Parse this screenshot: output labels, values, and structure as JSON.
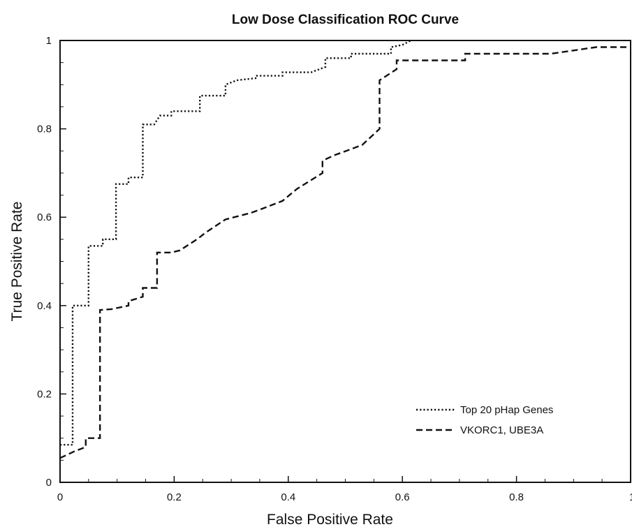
{
  "chart_data": {
    "type": "line",
    "title": "Low Dose Classification ROC Curve",
    "xlabel": "False Positive Rate",
    "ylabel": "True Positive Rate",
    "xlim": [
      0,
      1
    ],
    "ylim": [
      0,
      1
    ],
    "x_ticks": [
      "0",
      "0.2",
      "0.4",
      "0.6",
      "0.8",
      "1"
    ],
    "y_ticks": [
      "0",
      "0.2",
      "0.4",
      "0.6",
      "0.8",
      "1"
    ],
    "grid": false,
    "legend_position": "bottom-right",
    "series": [
      {
        "name": "Top 20 pHap Genes",
        "line_style": "dotted",
        "color": "#111111",
        "points": [
          [
            0.0,
            0.085
          ],
          [
            0.022,
            0.085
          ],
          [
            0.022,
            0.4
          ],
          [
            0.05,
            0.4
          ],
          [
            0.05,
            0.535
          ],
          [
            0.075,
            0.535
          ],
          [
            0.075,
            0.55
          ],
          [
            0.098,
            0.55
          ],
          [
            0.098,
            0.675
          ],
          [
            0.12,
            0.675
          ],
          [
            0.12,
            0.69
          ],
          [
            0.145,
            0.69
          ],
          [
            0.145,
            0.81
          ],
          [
            0.165,
            0.81
          ],
          [
            0.175,
            0.83
          ],
          [
            0.195,
            0.83
          ],
          [
            0.195,
            0.84
          ],
          [
            0.245,
            0.84
          ],
          [
            0.245,
            0.875
          ],
          [
            0.29,
            0.875
          ],
          [
            0.29,
            0.9
          ],
          [
            0.31,
            0.91
          ],
          [
            0.345,
            0.915
          ],
          [
            0.345,
            0.92
          ],
          [
            0.39,
            0.92
          ],
          [
            0.39,
            0.928
          ],
          [
            0.44,
            0.928
          ],
          [
            0.465,
            0.94
          ],
          [
            0.465,
            0.96
          ],
          [
            0.51,
            0.96
          ],
          [
            0.51,
            0.97
          ],
          [
            0.58,
            0.97
          ],
          [
            0.58,
            0.985
          ],
          [
            0.6,
            0.99
          ],
          [
            0.615,
            1.0
          ]
        ]
      },
      {
        "name": "VKORC1, UBE3A",
        "line_style": "dashed",
        "color": "#111111",
        "points": [
          [
            0.0,
            0.055
          ],
          [
            0.025,
            0.07
          ],
          [
            0.045,
            0.08
          ],
          [
            0.045,
            0.1
          ],
          [
            0.07,
            0.1
          ],
          [
            0.07,
            0.39
          ],
          [
            0.09,
            0.392
          ],
          [
            0.12,
            0.4
          ],
          [
            0.12,
            0.41
          ],
          [
            0.145,
            0.42
          ],
          [
            0.145,
            0.44
          ],
          [
            0.17,
            0.44
          ],
          [
            0.17,
            0.52
          ],
          [
            0.195,
            0.52
          ],
          [
            0.21,
            0.525
          ],
          [
            0.24,
            0.55
          ],
          [
            0.255,
            0.565
          ],
          [
            0.27,
            0.578
          ],
          [
            0.29,
            0.595
          ],
          [
            0.305,
            0.6
          ],
          [
            0.335,
            0.61
          ],
          [
            0.36,
            0.622
          ],
          [
            0.39,
            0.637
          ],
          [
            0.415,
            0.664
          ],
          [
            0.46,
            0.7
          ],
          [
            0.46,
            0.728
          ],
          [
            0.48,
            0.74
          ],
          [
            0.51,
            0.754
          ],
          [
            0.53,
            0.764
          ],
          [
            0.56,
            0.8
          ],
          [
            0.56,
            0.91
          ],
          [
            0.59,
            0.935
          ],
          [
            0.59,
            0.955
          ],
          [
            0.71,
            0.955
          ],
          [
            0.71,
            0.97
          ],
          [
            0.86,
            0.97
          ],
          [
            0.94,
            0.985
          ],
          [
            1.0,
            0.985
          ]
        ]
      }
    ]
  }
}
